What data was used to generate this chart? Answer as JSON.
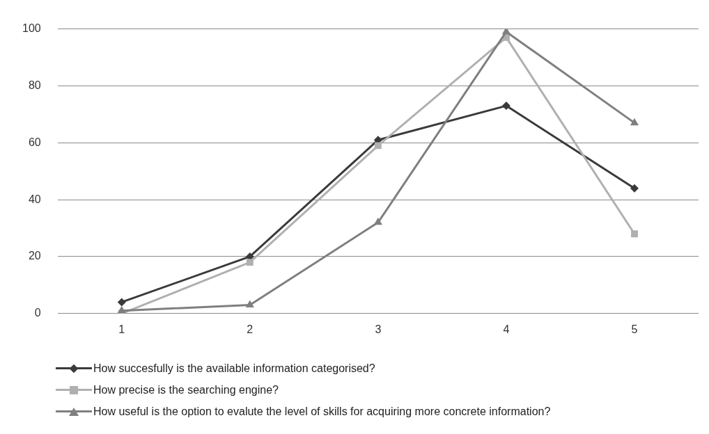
{
  "chart_data": {
    "type": "line",
    "categories": [
      "1",
      "2",
      "3",
      "4",
      "5"
    ],
    "series": [
      {
        "name": "How succesfully is the available information categorised?",
        "color": "#3a3a3a",
        "marker": "diamond",
        "values": [
          4,
          20,
          61,
          73,
          44
        ]
      },
      {
        "name": "How precise is the searching engine?",
        "color": "#b0b0b0",
        "marker": "square",
        "values": [
          0,
          18,
          59,
          97,
          28
        ]
      },
      {
        "name": "How useful is the option to evalute the level of skills for acquiring more concrete information?",
        "color": "#7f7f7f",
        "marker": "triangle",
        "values": [
          1,
          3,
          32,
          99,
          67
        ]
      }
    ],
    "ylim": [
      0,
      100
    ],
    "yticks": [
      0,
      20,
      40,
      60,
      80,
      100
    ],
    "grid": "y",
    "legend": "bottom"
  }
}
